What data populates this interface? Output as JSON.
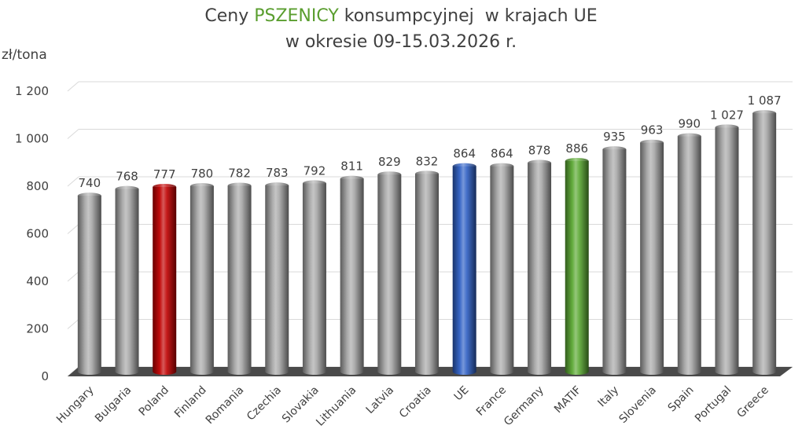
{
  "header": {
    "title_part1": "Ceny ",
    "title_highlight": "PSZENICY",
    "title_part2": " konsumpcyjnej  w krajach UE",
    "title_line2": "w okresie 09-15.03.2026 r.",
    "unit": "zł/tona"
  },
  "colors": {
    "default_bar": "#a6a6a6",
    "poland_bar": "#c00000",
    "ue_bar": "#2e5fc4",
    "matif_bar": "#5aa832",
    "title_highlight": "#5a9e2f",
    "floor": "#4a4a4a",
    "grid": "#d9d9d9"
  },
  "chart_data": {
    "type": "bar",
    "title": "Ceny PSZENICY konsumpcyjnej  w krajach UE w okresie 09-15.03.2026 r.",
    "ylabel": "zł/tona",
    "ylim": [
      0,
      1200
    ],
    "yticks": [
      0,
      200,
      400,
      600,
      800,
      1000,
      1200
    ],
    "ytick_labels": [
      "0",
      "200",
      "400",
      "600",
      "800",
      "1 000",
      "1 200"
    ],
    "grid": true,
    "categories": [
      "Hungary",
      "Bulgaria",
      "Poland",
      "Finland",
      "Romania",
      "Czechia",
      "Slovakia",
      "Lithuania",
      "Latvia",
      "Croatia",
      "UE",
      "France",
      "Germany",
      "MATIF",
      "Italy",
      "Slovenia",
      "Spain",
      "Portugal",
      "Greece"
    ],
    "values": [
      740,
      768,
      777,
      780,
      782,
      783,
      792,
      811,
      829,
      832,
      864,
      864,
      878,
      886,
      935,
      963,
      990,
      1027,
      1087
    ],
    "value_labels": [
      "740",
      "768",
      "777",
      "780",
      "782",
      "783",
      "792",
      "811",
      "829",
      "832",
      "864",
      "864",
      "878",
      "886",
      "935",
      "963",
      "990",
      "1 027",
      "1 087"
    ],
    "highlights": {
      "Poland": "poland_bar",
      "UE": "ue_bar",
      "MATIF": "matif_bar"
    }
  }
}
